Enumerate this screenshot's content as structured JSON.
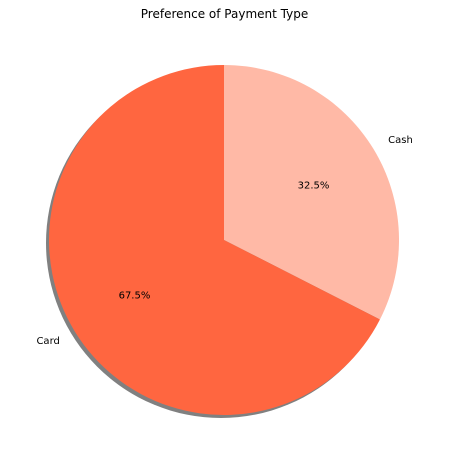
{
  "chart_data": {
    "type": "pie",
    "title": "Preference of Payment Type",
    "slices": [
      {
        "label": "Cash",
        "value": 32.5,
        "pct_label": "32.5%",
        "color": "#ffb9a6"
      },
      {
        "label": "Card",
        "value": 67.5,
        "pct_label": "67.5%",
        "color": "#ff6640"
      }
    ],
    "start_angle_deg": 90,
    "direction": "clockwise",
    "shadow": true,
    "shadow_color": "#808080"
  }
}
